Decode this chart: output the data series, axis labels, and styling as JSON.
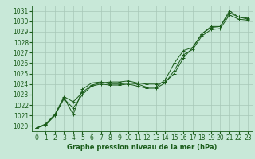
{
  "title": "Graphe pression niveau de la mer (hPa)",
  "bg_color": "#c8e8d8",
  "grid_color": "#a8c8b8",
  "line_color": "#1a5c1a",
  "xlim": [
    -0.5,
    23.5
  ],
  "ylim": [
    1019.5,
    1031.5
  ],
  "yticks": [
    1020,
    1021,
    1022,
    1023,
    1024,
    1025,
    1026,
    1027,
    1028,
    1029,
    1030,
    1031
  ],
  "xticks": [
    0,
    1,
    2,
    3,
    4,
    5,
    6,
    7,
    8,
    9,
    10,
    11,
    12,
    13,
    14,
    15,
    16,
    17,
    18,
    19,
    20,
    21,
    22,
    23
  ],
  "series1": [
    1019.8,
    1020.1,
    1021.0,
    1022.7,
    1021.1,
    1023.5,
    1024.1,
    1024.2,
    1024.0,
    1024.0,
    1024.1,
    1024.0,
    1023.7,
    1023.7,
    1024.4,
    1026.0,
    1027.2,
    1027.5,
    1028.8,
    1029.4,
    1029.5,
    1031.0,
    1030.4,
    1030.2
  ],
  "series2": [
    1019.8,
    1020.2,
    1021.1,
    1022.8,
    1022.3,
    1023.2,
    1023.9,
    1024.1,
    1024.2,
    1024.2,
    1024.3,
    1024.1,
    1024.0,
    1024.0,
    1024.2,
    1025.0,
    1026.5,
    1027.5,
    1028.8,
    1029.5,
    1029.5,
    1030.8,
    1030.4,
    1030.3
  ],
  "series3": [
    1019.8,
    1020.1,
    1021.0,
    1022.6,
    1021.7,
    1023.0,
    1023.8,
    1024.0,
    1023.9,
    1023.9,
    1024.0,
    1023.8,
    1023.6,
    1023.6,
    1024.1,
    1025.3,
    1026.8,
    1027.3,
    1028.6,
    1029.2,
    1029.3,
    1030.6,
    1030.2,
    1030.1
  ],
  "tick_fontsize": 5.5,
  "xlabel_fontsize": 6.0,
  "linewidth": 0.7,
  "markersize": 2.5
}
